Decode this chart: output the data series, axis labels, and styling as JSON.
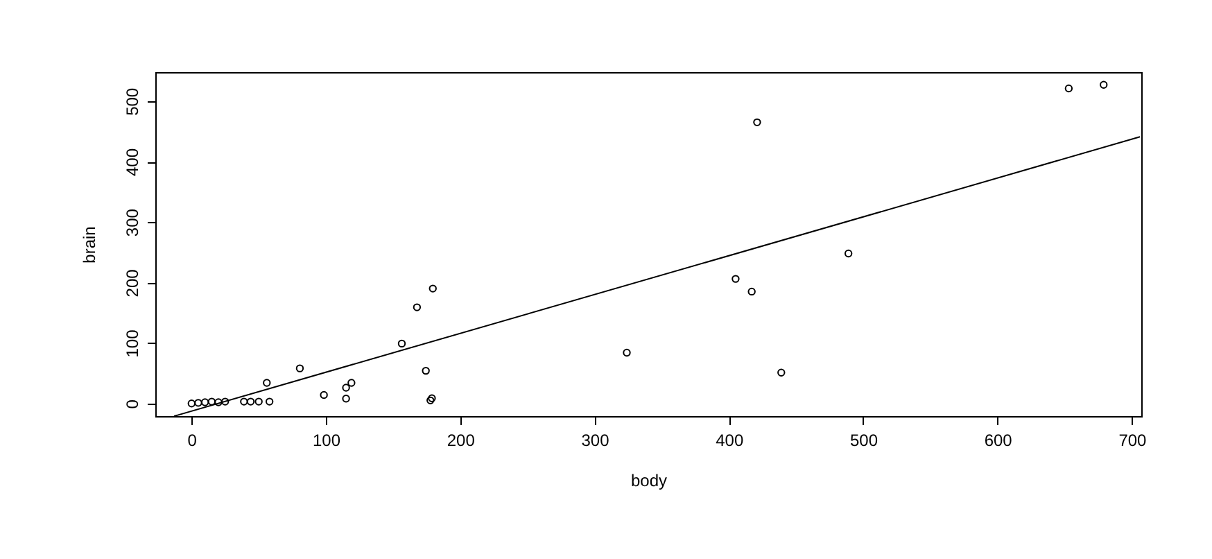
{
  "chart_data": {
    "type": "scatter",
    "xlabel": "body",
    "ylabel": "brain",
    "xlim": [
      -27,
      707
    ],
    "ylim": [
      -21,
      548
    ],
    "xticks": [
      0,
      100,
      200,
      300,
      400,
      500,
      600,
      700
    ],
    "yticks": [
      0,
      100,
      200,
      300,
      400,
      500
    ],
    "grid": false,
    "marker": "circle",
    "series": [
      {
        "color": "#000000",
        "x": [
          0,
          5,
          10,
          15,
          20,
          25,
          39,
          44,
          50,
          58,
          56,
          80.6,
          98.5,
          115,
          115,
          119,
          156.5,
          167.8,
          174.4,
          177.8,
          178.9,
          179.6,
          324,
          405,
          417,
          421,
          439,
          489,
          653,
          679
        ],
        "values": [
          0,
          1,
          2,
          3,
          2,
          3,
          3,
          3,
          3,
          3,
          34,
          58,
          14,
          8,
          26,
          34,
          99,
          159,
          54,
          5,
          8.5,
          190,
          84,
          206,
          185,
          465,
          51,
          248,
          521,
          527
        ]
      },
      {
        "type": "line",
        "color": "#000000",
        "marker": "none",
        "line_style": "solid",
        "x": [
          -13,
          706
        ],
        "values": [
          -21,
          441
        ]
      }
    ]
  }
}
